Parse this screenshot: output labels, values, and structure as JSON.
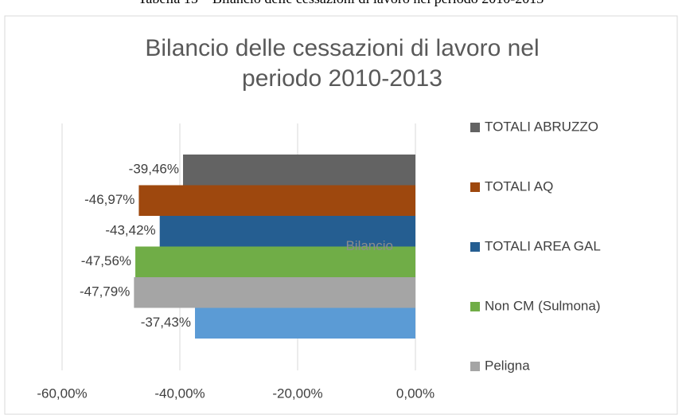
{
  "caption": "Tabella 15 – Bilancio delle cessazioni di lavoro nel periodo 2010-2013",
  "chart_data": {
    "type": "hbar",
    "title": "Bilancio delle cessazioni di lavoro nel periodo 2010-2013",
    "categories": [
      "Bilancio"
    ],
    "series": [
      {
        "name": "TOTALI ABRUZZO",
        "color": "#636363",
        "values": [
          -39.46
        ],
        "value_labels": [
          "-39,46%"
        ]
      },
      {
        "name": "TOTALI AQ",
        "color": "#9e480e",
        "values": [
          -46.97
        ],
        "value_labels": [
          "-46,97%"
        ]
      },
      {
        "name": "TOTALI AREA GAL",
        "color": "#255e91",
        "values": [
          -43.42
        ],
        "value_labels": [
          "-43,42%"
        ]
      },
      {
        "name": "Non CM (Sulmona)",
        "color": "#70ad47",
        "values": [
          -47.56
        ],
        "value_labels": [
          "-47,56%"
        ]
      },
      {
        "name": "Peligna",
        "color": "#a5a5a5",
        "values": [
          -47.79
        ],
        "value_labels": [
          "-47,79%"
        ]
      },
      {
        "color": "#5b9bd5",
        "values": [
          -37.43
        ],
        "value_labels": [
          "-37,43%"
        ]
      }
    ],
    "xlim": [
      -60,
      0
    ],
    "xticks": [
      {
        "value": -60,
        "label": "-60,00%"
      },
      {
        "value": -40,
        "label": "-40,00%"
      },
      {
        "value": -20,
        "label": "-20,00%"
      },
      {
        "value": 0,
        "label": "0,00%"
      }
    ],
    "grid": true,
    "legend": "right"
  }
}
